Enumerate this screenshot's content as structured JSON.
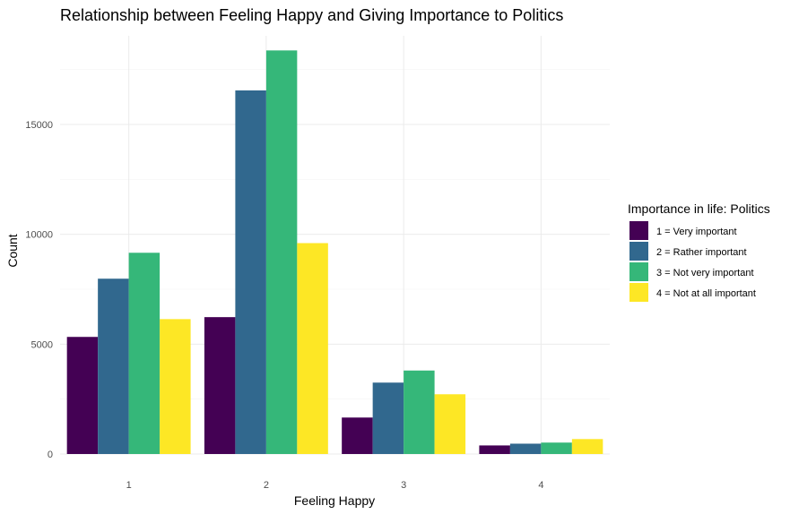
{
  "chart_data": {
    "type": "bar",
    "title": "Relationship between Feeling Happy and Giving Importance to Politics",
    "xlabel": "Feeling Happy",
    "ylabel": "Count",
    "categories": [
      "1",
      "2",
      "3",
      "4"
    ],
    "ylim": [
      0,
      18400
    ],
    "yticks": [
      0,
      5000,
      10000,
      15000
    ],
    "ytick_labels": [
      "0",
      "5000",
      "10000",
      "15000"
    ],
    "grid": true,
    "legend": {
      "title": "Importance in life: Politics",
      "position": "right"
    },
    "series": [
      {
        "name": "1 = Very important",
        "color": "#440154",
        "values": [
          5330,
          6230,
          1660,
          390
        ]
      },
      {
        "name": "2 = Rather important",
        "color": "#31688E",
        "values": [
          7980,
          16550,
          3250,
          470
        ]
      },
      {
        "name": "3 = Not very important",
        "color": "#35B779",
        "values": [
          9160,
          18370,
          3800,
          520
        ]
      },
      {
        "name": "4 = Not at all important",
        "color": "#FDE725",
        "values": [
          6140,
          9600,
          2720,
          680
        ]
      }
    ]
  }
}
